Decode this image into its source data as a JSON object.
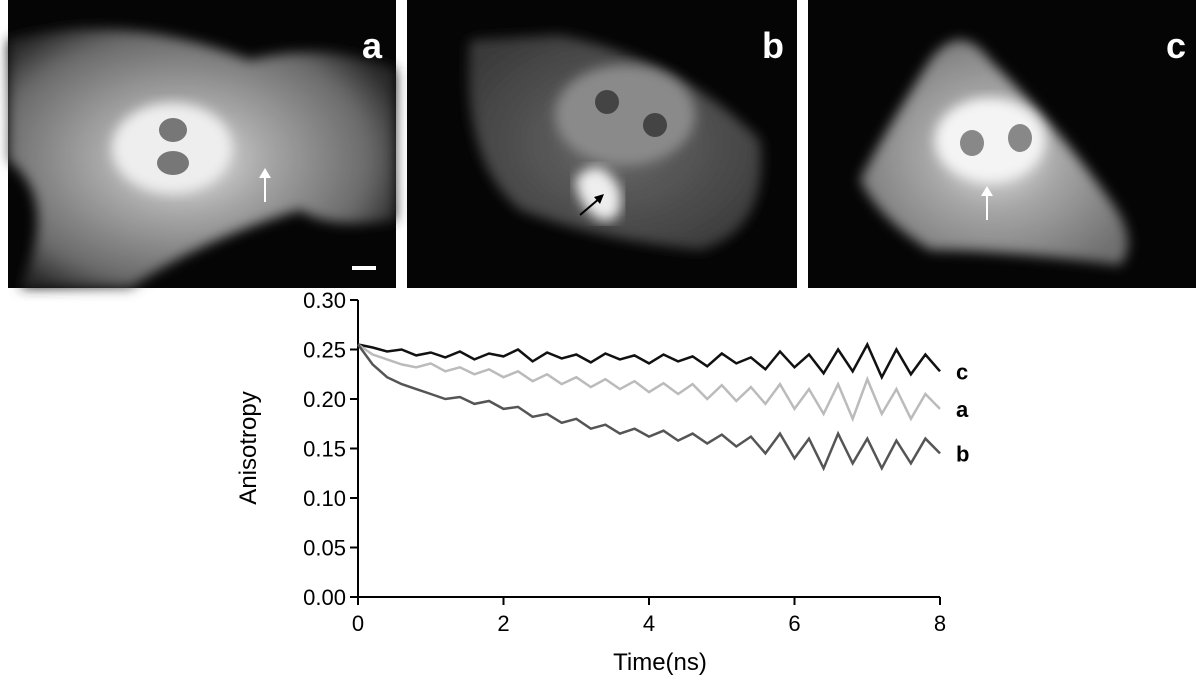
{
  "panels": {
    "labels": [
      "a",
      "b",
      "c"
    ]
  },
  "chart_data": {
    "type": "line",
    "xlabel": "Time(ns)",
    "ylabel": "Anisotropy",
    "x": [
      0,
      0.2,
      0.4,
      0.6,
      0.8,
      1,
      1.2,
      1.4,
      1.6,
      1.8,
      2,
      2.2,
      2.4,
      2.6,
      2.8,
      3,
      3.2,
      3.4,
      3.6,
      3.8,
      4,
      4.2,
      4.4,
      4.6,
      4.8,
      5,
      5.2,
      5.4,
      5.6,
      5.8,
      6,
      6.2,
      6.4,
      6.6,
      6.8,
      7,
      7.2,
      7.4,
      7.6,
      7.8,
      8
    ],
    "series": [
      {
        "name": "c",
        "color": "#111111",
        "values": [
          0.255,
          0.252,
          0.248,
          0.25,
          0.244,
          0.247,
          0.242,
          0.248,
          0.24,
          0.246,
          0.243,
          0.25,
          0.238,
          0.247,
          0.241,
          0.245,
          0.237,
          0.246,
          0.24,
          0.244,
          0.236,
          0.245,
          0.238,
          0.243,
          0.233,
          0.246,
          0.236,
          0.242,
          0.23,
          0.248,
          0.232,
          0.245,
          0.226,
          0.25,
          0.228,
          0.255,
          0.222,
          0.25,
          0.225,
          0.245,
          0.228
        ]
      },
      {
        "name": "a",
        "color": "#bbbbbb",
        "values": [
          0.255,
          0.245,
          0.24,
          0.235,
          0.232,
          0.236,
          0.228,
          0.232,
          0.225,
          0.23,
          0.222,
          0.228,
          0.218,
          0.225,
          0.215,
          0.222,
          0.212,
          0.22,
          0.21,
          0.218,
          0.207,
          0.216,
          0.205,
          0.215,
          0.2,
          0.214,
          0.198,
          0.212,
          0.195,
          0.215,
          0.19,
          0.21,
          0.185,
          0.215,
          0.18,
          0.22,
          0.185,
          0.21,
          0.18,
          0.205,
          0.19
        ]
      },
      {
        "name": "b",
        "color": "#555555",
        "values": [
          0.255,
          0.235,
          0.222,
          0.215,
          0.21,
          0.205,
          0.2,
          0.202,
          0.195,
          0.198,
          0.19,
          0.192,
          0.182,
          0.185,
          0.176,
          0.18,
          0.17,
          0.174,
          0.165,
          0.17,
          0.162,
          0.168,
          0.158,
          0.165,
          0.155,
          0.164,
          0.152,
          0.162,
          0.145,
          0.165,
          0.14,
          0.16,
          0.13,
          0.165,
          0.135,
          0.16,
          0.13,
          0.158,
          0.135,
          0.16,
          0.145
        ]
      }
    ],
    "xlim": [
      0,
      8
    ],
    "xticks": [
      0,
      2,
      4,
      6,
      8
    ],
    "ylim": [
      0,
      0.3
    ],
    "yticks": [
      {
        "value": 0,
        "label": "0.00"
      },
      0.05,
      {
        "value": 0.1,
        "label": "0.10"
      },
      0.15,
      {
        "value": 0.2,
        "label": "0.20"
      },
      0.25,
      {
        "value": 0.3,
        "label": "0.30"
      }
    ]
  }
}
